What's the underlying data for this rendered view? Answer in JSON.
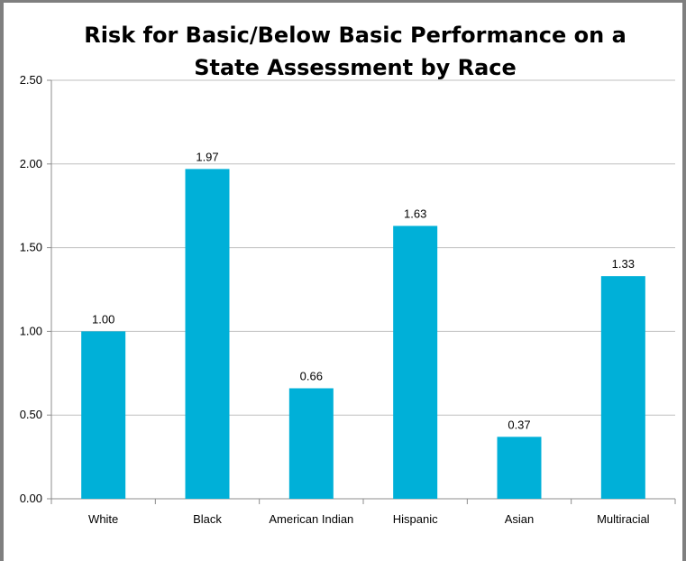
{
  "chart_data": {
    "type": "bar",
    "title_lines": [
      "Risk for Basic/Below Basic Performance on a",
      "State Assessment by Race"
    ],
    "categories": [
      "White",
      "Black",
      "American Indian",
      "Hispanic",
      "Asian",
      "Multiracial"
    ],
    "values": [
      1.0,
      1.97,
      0.66,
      1.63,
      0.37,
      1.33
    ],
    "data_labels": [
      "1.00",
      "1.97",
      "0.66",
      "1.63",
      "0.37",
      "1.33"
    ],
    "y_ticks": [
      "0.00",
      "0.50",
      "1.00",
      "1.50",
      "2.00",
      "2.50"
    ],
    "ylim": [
      0,
      2.5
    ],
    "grid": true,
    "legend": "none",
    "bar_color": "#00b0d8",
    "grid_color": "#bfbfbf",
    "axis_color": "#8c8c8c"
  }
}
